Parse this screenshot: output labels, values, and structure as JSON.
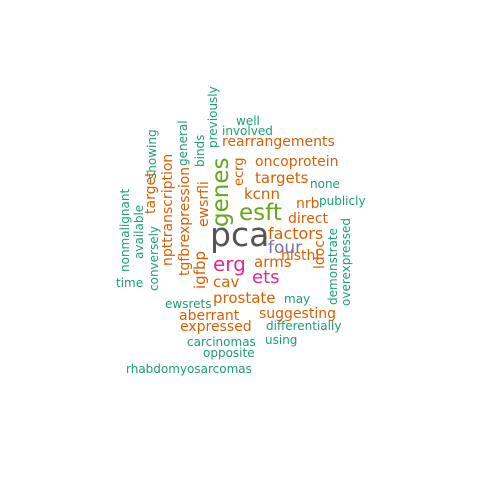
{
  "palette": {
    "green": "#1b9e77",
    "orange": "#d95f02",
    "purple": "#7570b3",
    "magenta": "#e7298a",
    "olive": "#66a61e",
    "gray": "#555555"
  },
  "words": [
    {
      "text": "pca",
      "color": "#555555"
    },
    {
      "text": "esft",
      "color": "#66a61e"
    },
    {
      "text": "genes",
      "color": "#66a61e"
    },
    {
      "text": "erg",
      "color": "#e7298a"
    },
    {
      "text": "ets",
      "color": "#e7298a"
    },
    {
      "text": "four",
      "color": "#7570b3"
    },
    {
      "text": "factors",
      "color": "#d95f02"
    },
    {
      "text": "arms",
      "color": "#d95f02"
    },
    {
      "text": "targets",
      "color": "#d95f02"
    },
    {
      "text": "kcnn",
      "color": "#d95f02"
    },
    {
      "text": "cav",
      "color": "#d95f02"
    },
    {
      "text": "prostate",
      "color": "#d95f02"
    },
    {
      "text": "igfbp",
      "color": "#d95f02"
    },
    {
      "text": "tgfbrexpression",
      "color": "#d95f02"
    },
    {
      "text": "npttranscription",
      "color": "#d95f02"
    },
    {
      "text": "ewsrfli",
      "color": "#d95f02"
    },
    {
      "text": "oncoprotein",
      "color": "#d95f02"
    },
    {
      "text": "rearrangements",
      "color": "#d95f02"
    },
    {
      "text": "direct",
      "color": "#d95f02"
    },
    {
      "text": "nrb",
      "color": "#d95f02"
    },
    {
      "text": "histhl",
      "color": "#d95f02"
    },
    {
      "text": "ldoc",
      "color": "#d95f02"
    },
    {
      "text": "suggesting",
      "color": "#d95f02"
    },
    {
      "text": "aberrant",
      "color": "#d95f02"
    },
    {
      "text": "expressed",
      "color": "#d95f02"
    },
    {
      "text": "target",
      "color": "#d95f02"
    },
    {
      "text": "ecrg",
      "color": "#d95f02"
    },
    {
      "text": "well",
      "color": "#1b9e77"
    },
    {
      "text": "involved",
      "color": "#1b9e77"
    },
    {
      "text": "previously",
      "color": "#1b9e77"
    },
    {
      "text": "binds",
      "color": "#1b9e77"
    },
    {
      "text": "general",
      "color": "#1b9e77"
    },
    {
      "text": "showing",
      "color": "#1b9e77"
    },
    {
      "text": "none",
      "color": "#1b9e77"
    },
    {
      "text": "publicly",
      "color": "#1b9e77"
    },
    {
      "text": "nonmalignant",
      "color": "#1b9e77"
    },
    {
      "text": "available",
      "color": "#1b9e77"
    },
    {
      "text": "conversely",
      "color": "#1b9e77"
    },
    {
      "text": "time",
      "color": "#1b9e77"
    },
    {
      "text": "demonstrate",
      "color": "#1b9e77"
    },
    {
      "text": "overexpressed",
      "color": "#1b9e77"
    },
    {
      "text": "may",
      "color": "#1b9e77"
    },
    {
      "text": "ewsrets",
      "color": "#1b9e77"
    },
    {
      "text": "differentially",
      "color": "#1b9e77"
    },
    {
      "text": "using",
      "color": "#1b9e77"
    },
    {
      "text": "carcinomas",
      "color": "#1b9e77"
    },
    {
      "text": "opposite",
      "color": "#1b9e77"
    },
    {
      "text": "rhabdomyosarcomas",
      "color": "#1b9e77"
    }
  ]
}
